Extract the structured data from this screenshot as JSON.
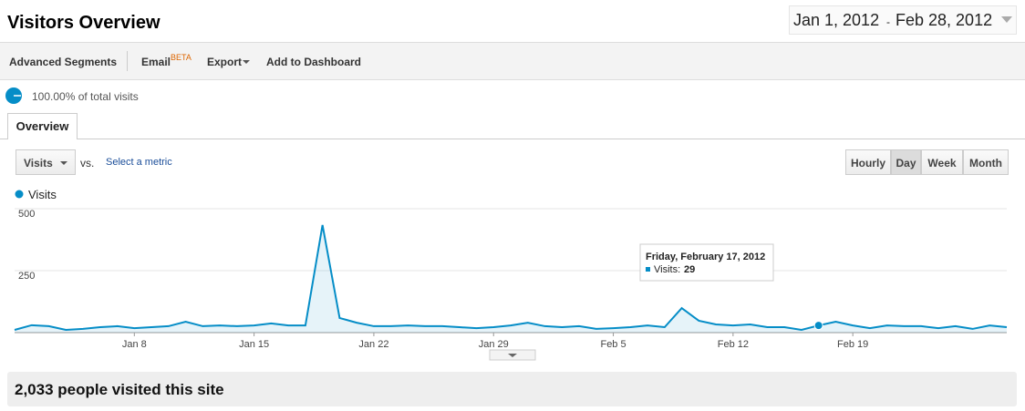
{
  "header": {
    "title": "Visitors Overview",
    "date_start": "Jan 1, 2012",
    "date_separator": "-",
    "date_end": "Feb 28, 2012"
  },
  "toolbar": {
    "advanced_segments": "Advanced Segments",
    "email": "Email",
    "email_badge": "BETA",
    "export": "Export",
    "add_to_dashboard": "Add to Dashboard"
  },
  "segment": {
    "label": "100.00% of total visits"
  },
  "tab": "Overview",
  "controls": {
    "metric": "Visits",
    "vs": "vs.",
    "select_metric": "Select a metric",
    "buttons": [
      "Hourly",
      "Day",
      "Week",
      "Month"
    ],
    "active_button": "Day"
  },
  "chart_data": {
    "type": "line",
    "area": true,
    "categories": [
      null,
      null,
      null,
      null,
      null,
      null,
      null,
      "Jan 8",
      null,
      null,
      null,
      null,
      null,
      null,
      "Jan 15",
      null,
      null,
      null,
      null,
      null,
      null,
      "Jan 22",
      null,
      null,
      null,
      null,
      null,
      null,
      "Jan 29",
      null,
      null,
      null,
      null,
      null,
      null,
      "Feb 5",
      null,
      null,
      null,
      null,
      null,
      null,
      "Feb 12",
      null,
      null,
      null,
      null,
      null,
      null,
      "Feb 19",
      null,
      null,
      null,
      null,
      null,
      null,
      null,
      null,
      null
    ],
    "series": [
      {
        "name": "Visits",
        "color": "#058dc7",
        "values": [
          11,
          30,
          26,
          11,
          15,
          22,
          26,
          18,
          22,
          26,
          44,
          26,
          29,
          26,
          29,
          37,
          29,
          29,
          434,
          59,
          40,
          26,
          26,
          29,
          26,
          26,
          22,
          18,
          22,
          29,
          40,
          26,
          22,
          26,
          15,
          18,
          22,
          29,
          22,
          99,
          48,
          33,
          29,
          33,
          22,
          22,
          11,
          29,
          44,
          29,
          18,
          29,
          26,
          26,
          18,
          26,
          15,
          29,
          22
        ]
      }
    ],
    "ylim": [
      0,
      500
    ],
    "yticks": [
      250,
      500
    ],
    "grid": true,
    "tooltip": {
      "title": "Friday, February 17, 2012",
      "label": "Visits:",
      "index": 47
    }
  },
  "footer": {
    "summary": "2,033 people visited this site"
  }
}
